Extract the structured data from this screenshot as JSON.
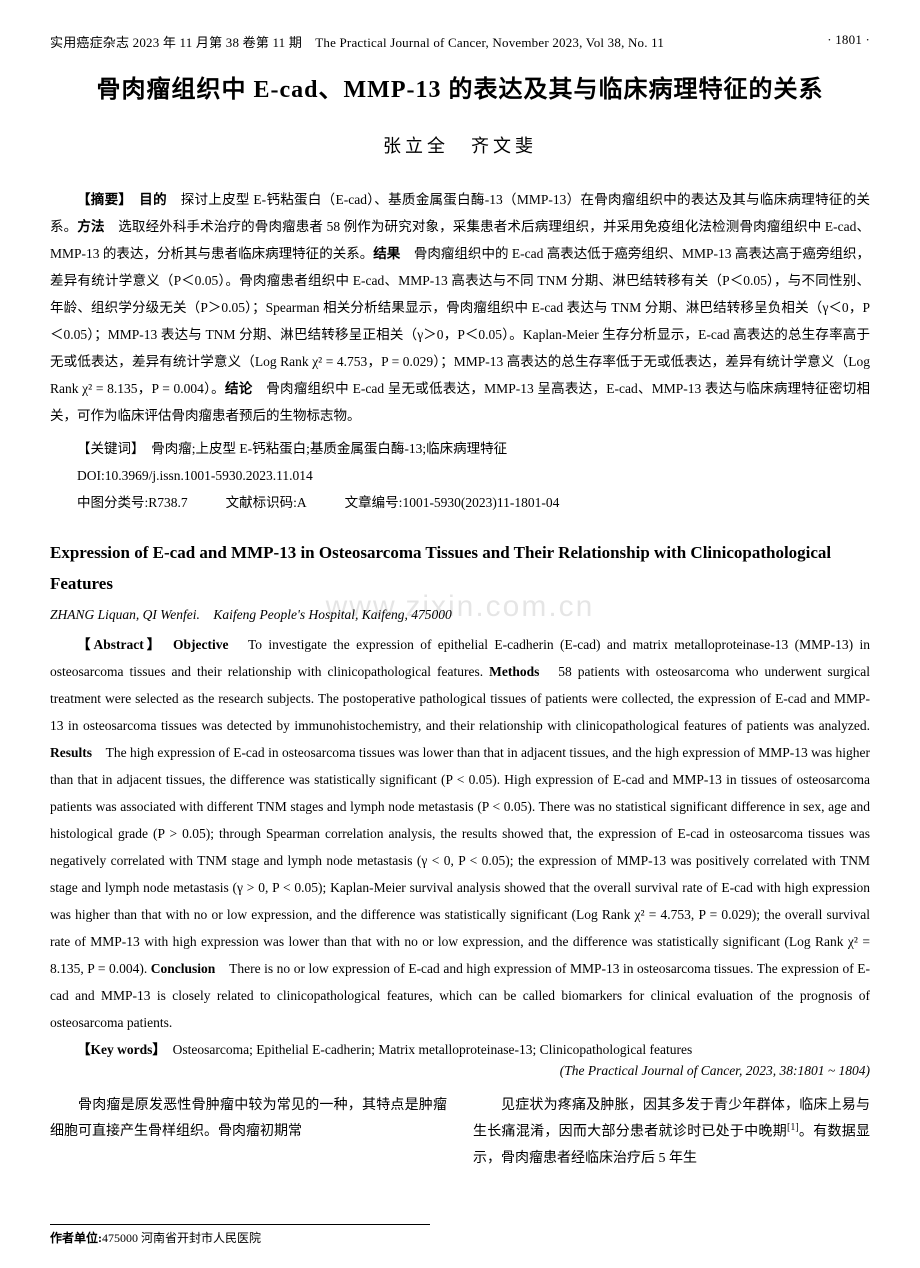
{
  "header": {
    "left": "实用癌症杂志 2023 年 11 月第 38 卷第 11 期　The Practical Journal of Cancer, November 2023, Vol 38, No. 11",
    "right": "· 1801 ·"
  },
  "title_cn": "骨肉瘤组织中 E-cad、MMP-13 的表达及其与临床病理特征的关系",
  "authors_cn": "张立全　齐文斐",
  "abstract_cn": {
    "label_abstract": "【摘要】",
    "label_objective": "目的",
    "objective": "探讨上皮型 E-钙粘蛋白（E-cad）、基质金属蛋白酶-13（MMP-13）在骨肉瘤组织中的表达及其与临床病理特征的关系。",
    "label_methods": "方法",
    "methods": "选取经外科手术治疗的骨肉瘤患者 58 例作为研究对象，采集患者术后病理组织，并采用免疫组化法检测骨肉瘤组织中 E-cad、MMP-13 的表达，分析其与患者临床病理特征的关系。",
    "label_results": "结果",
    "results": "骨肉瘤组织中的 E-cad 高表达低于癌旁组织、MMP-13 高表达高于癌旁组织，差异有统计学意义（P＜0.05）。骨肉瘤患者组织中 E-cad、MMP-13 高表达与不同 TNM 分期、淋巴结转移有关（P＜0.05），与不同性别、年龄、组织学分级无关（P＞0.05）；Spearman 相关分析结果显示，骨肉瘤组织中 E-cad 表达与 TNM 分期、淋巴结转移呈负相关（γ＜0，P＜0.05）；MMP-13 表达与 TNM 分期、淋巴结转移呈正相关（γ＞0，P＜0.05）。Kaplan-Meier 生存分析显示，E-cad 高表达的总生存率高于无或低表达，差异有统计学意义（Log Rank χ² = 4.753，P = 0.029）；MMP-13 高表达的总生存率低于无或低表达，差异有统计学意义（Log Rank χ² = 8.135，P = 0.004）。",
    "label_conclusion": "结论",
    "conclusion": "骨肉瘤组织中 E-cad 呈无或低表达，MMP-13 呈高表达，E-cad、MMP-13 表达与临床病理特征密切相关，可作为临床评估骨肉瘤患者预后的生物标志物。"
  },
  "keywords_cn": {
    "label": "【关键词】",
    "text": "骨肉瘤;上皮型 E-钙粘蛋白;基质金属蛋白酶-13;临床病理特征"
  },
  "doi": "DOI:10.3969/j.issn.1001-5930.2023.11.014",
  "classification": {
    "cls_label": "中图分类号:",
    "cls": "R738.7",
    "doc_label": "文献标识码:",
    "doc": "A",
    "art_label": "文章编号:",
    "art": "1001-5930(2023)11-1801-04"
  },
  "title_en": "Expression of E-cad and MMP-13 in Osteosarcoma Tissues and Their Relationship with Clinicopathological Features",
  "authors_en": "ZHANG Liquan, QI Wenfei.　Kaifeng People's Hospital, Kaifeng, 475000",
  "abstract_en": {
    "label_abstract": "【Abstract】",
    "label_objective": "Objective",
    "objective": "To investigate the expression of epithelial E-cadherin (E-cad) and matrix metalloproteinase-13 (MMP-13) in osteosarcoma tissues and their relationship with clinicopathological features.",
    "label_methods": "Methods",
    "methods": "58 patients with osteosarcoma who underwent surgical treatment were selected as the research subjects. The postoperative pathological tissues of patients were collected, the expression of E-cad and MMP-13 in osteosarcoma tissues was detected by immunohistochemistry, and their relationship with clinicopathological features of patients was analyzed.",
    "label_results": "Results",
    "results": "The high expression of E-cad in osteosarcoma tissues was lower than that in adjacent tissues, and the high expression of MMP-13 was higher than that in adjacent tissues, the difference was statistically significant (P < 0.05). High expression of E-cad and MMP-13 in tissues of osteosarcoma patients was associated with different TNM stages and lymph node metastasis (P < 0.05). There was no statistical significant difference in sex, age and histological grade (P > 0.05); through Spearman correlation analysis, the results showed that, the expression of E-cad in osteosarcoma tissues was negatively correlated with TNM stage and lymph node metastasis (γ < 0, P < 0.05); the expression of MMP-13 was positively correlated with TNM stage and lymph node metastasis (γ > 0, P < 0.05); Kaplan-Meier survival analysis showed that the overall survival rate of E-cad with high expression was higher than that with no or low expression, and the difference was statistically significant (Log Rank χ² = 4.753, P = 0.029); the overall survival rate of MMP-13 with high expression was lower than that with no or low expression, and the difference was statistically significant (Log Rank χ² = 8.135, P = 0.004).",
    "label_conclusion": "Conclusion",
    "conclusion": "There is no or low expression of E-cad and high expression of MMP-13 in osteosarcoma tissues. The expression of E-cad and MMP-13 is closely related to clinicopathological features, which can be called biomarkers for clinical evaluation of the prognosis of osteosarcoma patients."
  },
  "keywords_en": {
    "label": "【Key words】",
    "text": "Osteosarcoma; Epithelial E-cadherin; Matrix metalloproteinase-13; Clinicopathological features"
  },
  "citation_en": "(The Practical Journal of Cancer, 2023, 38:1801 ~ 1804)",
  "body": {
    "p1": "骨肉瘤是原发恶性骨肿瘤中较为常见的一种，其特点是肿瘤细胞可直接产生骨样组织。骨肉瘤初期常",
    "p2a": "见症状为疼痛及肿胀，因其多发于青少年群体，临床上易与生长痛混淆，因而大部分患者就诊时已处于中晚期",
    "ref1": "[1]",
    "p2b": "。有数据显示，骨肉瘤患者经临床治疗后 5 年生"
  },
  "footer": {
    "label": "作者单位:",
    "text": "475000 河南省开封市人民医院"
  },
  "watermark": "www.zixin.com.cn"
}
